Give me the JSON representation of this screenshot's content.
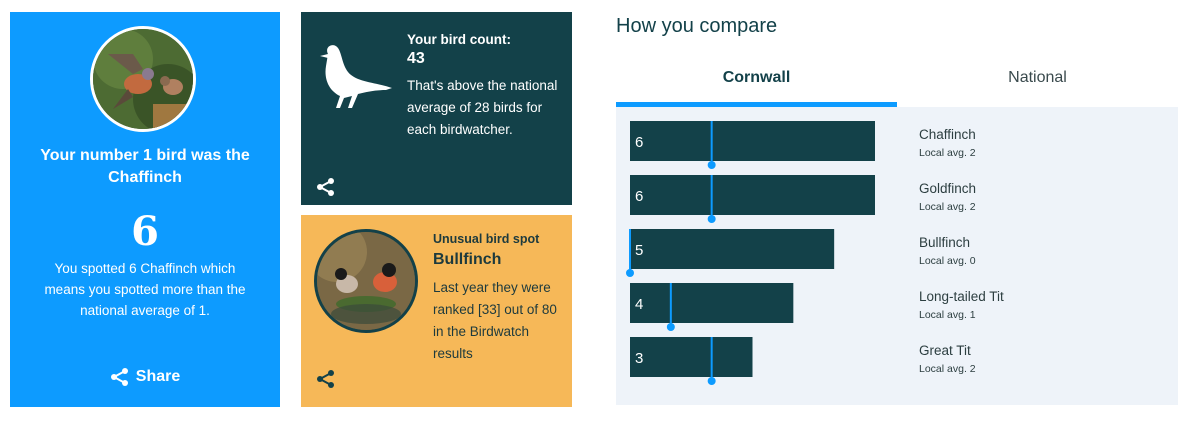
{
  "top_bird": {
    "heading": "Your number 1 bird was the Chaffinch",
    "count": "6",
    "description": "You spotted 6 Chaffinch which means you spotted more than the national average of 1.",
    "share_label": "Share"
  },
  "bird_count": {
    "title": "Your bird count:",
    "value": "43",
    "description": "That's above the national average of 28 birds for each birdwatcher."
  },
  "unusual": {
    "title": "Unusual bird spot",
    "name": "Bullfinch",
    "description": "Last year they were ranked [33] out of 80 in the Birdwatch results"
  },
  "compare": {
    "title": "How you compare",
    "tabs": [
      {
        "label": "Cornwall",
        "active": true
      },
      {
        "label": "National",
        "active": false
      }
    ]
  },
  "chart_data": {
    "type": "bar",
    "orientation": "horizontal",
    "categories": [
      "Chaffinch",
      "Goldfinch",
      "Bullfinch",
      "Long-tailed Tit",
      "Great Tit"
    ],
    "values": [
      6,
      6,
      5,
      4,
      3
    ],
    "local_avg": [
      2,
      2,
      0,
      1,
      2
    ],
    "local_avg_labels": [
      "Local avg. 2",
      "Local avg. 2",
      "Local avg. 0",
      "Local avg. 1",
      "Local avg. 2"
    ],
    "xlim": [
      0,
      6
    ],
    "colors": {
      "bar": "#134149",
      "marker": "#0d9bff"
    }
  },
  "colors": {
    "primary_blue": "#0d9bff",
    "dark_teal": "#134149",
    "amber": "#f6b858",
    "panel_bg": "#eef3f9"
  }
}
